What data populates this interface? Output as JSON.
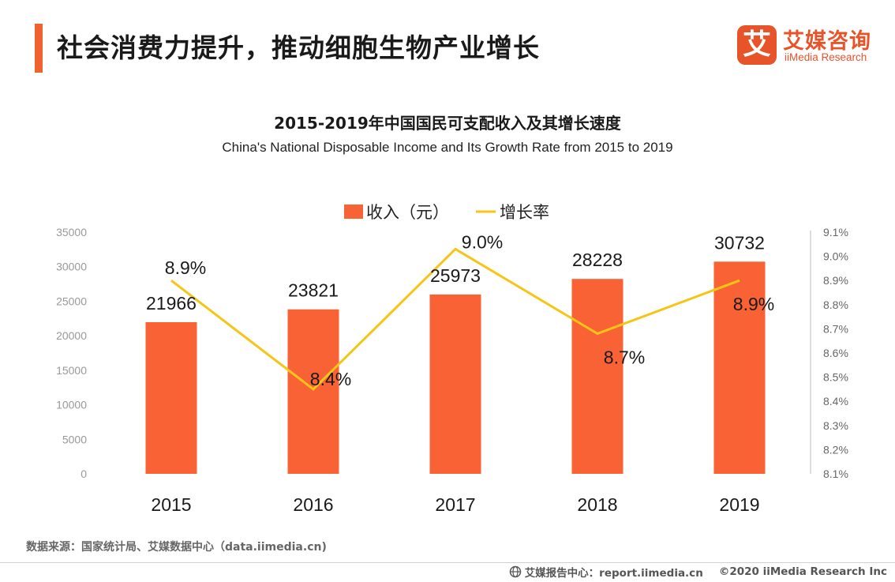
{
  "header": {
    "title": "社会消费力提升，推动细胞生物产业增长",
    "logo_cn": "艾媒咨询",
    "logo_en": "iiMedia Research",
    "logo_mark": "艾"
  },
  "chart_data": {
    "type": "bar",
    "title": "2015-2019年中国国民可支配收入及其增长速度",
    "subtitle": "China's National Disposable Income and Its Growth Rate from 2015 to 2019",
    "categories": [
      "2015",
      "2016",
      "2017",
      "2018",
      "2019"
    ],
    "series": [
      {
        "name": "收入（元）",
        "type": "bar",
        "axis": "left",
        "values": [
          21966,
          23821,
          25973,
          28228,
          30732
        ],
        "labels": [
          "21966",
          "23821",
          "25973",
          "28228",
          "30732"
        ],
        "color": "#f96235"
      },
      {
        "name": "增长率",
        "type": "line",
        "axis": "right",
        "values": [
          8.9,
          8.45,
          9.03,
          8.68,
          8.9
        ],
        "labels": [
          "8.9%",
          "8.4%",
          "9.0%",
          "8.7%",
          "8.9%"
        ],
        "color": "#f5c518"
      }
    ],
    "y_left": {
      "min": 0,
      "max": 35000,
      "ticks": [
        "0",
        "5000",
        "10000",
        "15000",
        "20000",
        "25000",
        "30000",
        "35000"
      ]
    },
    "y_right": {
      "min": 8.1,
      "max": 9.1,
      "ticks": [
        "8.1%",
        "8.2%",
        "8.3%",
        "8.4%",
        "8.5%",
        "8.6%",
        "8.7%",
        "8.8%",
        "8.9%",
        "9.0%",
        "9.1%"
      ]
    },
    "legend": "top-center",
    "grid": false
  },
  "footer": {
    "source": "数据来源：国家统计局、艾媒数据中心（data.iimedia.cn)",
    "report": "艾媒报告中心：report.iimedia.cn",
    "copyright": "©2020  iiMedia Research  Inc"
  },
  "colors": {
    "accent": "#f0622f",
    "bar": "#f96235",
    "line": "#f5c518",
    "brand": "#e8542a"
  }
}
